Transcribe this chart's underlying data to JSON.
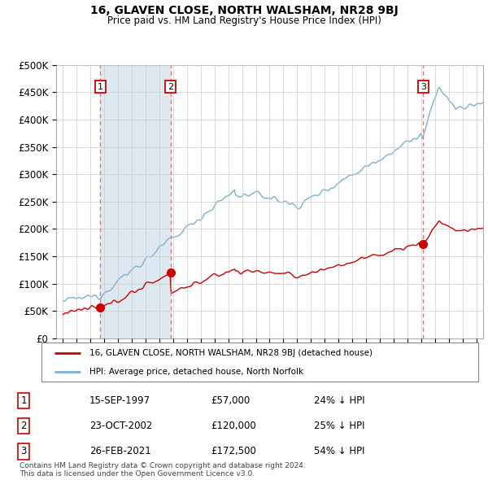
{
  "title": "16, GLAVEN CLOSE, NORTH WALSHAM, NR28 9BJ",
  "subtitle": "Price paid vs. HM Land Registry's House Price Index (HPI)",
  "ytick_values": [
    0,
    50000,
    100000,
    150000,
    200000,
    250000,
    300000,
    350000,
    400000,
    450000,
    500000
  ],
  "ylim": [
    0,
    500000
  ],
  "xlim_start": 1994.5,
  "xlim_end": 2025.5,
  "sale_dates": [
    1997.71,
    2002.81,
    2021.15
  ],
  "sale_prices": [
    57000,
    120000,
    172500
  ],
  "sale_labels": [
    "1",
    "2",
    "3"
  ],
  "sale_color": "#cc0000",
  "hpi_line_color": "#7ab0d4",
  "sale_line_color": "#cc0000",
  "shade_color": "#dde8f0",
  "grid_color": "#cccccc",
  "legend_entry1": "16, GLAVEN CLOSE, NORTH WALSHAM, NR28 9BJ (detached house)",
  "legend_entry2": "HPI: Average price, detached house, North Norfolk",
  "table_rows": [
    [
      "1",
      "15-SEP-1997",
      "£57,000",
      "24% ↓ HPI"
    ],
    [
      "2",
      "23-OCT-2002",
      "£120,000",
      "25% ↓ HPI"
    ],
    [
      "3",
      "26-FEB-2021",
      "£172,500",
      "54% ↓ HPI"
    ]
  ],
  "footer": "Contains HM Land Registry data © Crown copyright and database right 2024.\nThis data is licensed under the Open Government Licence v3.0.",
  "xtick_years": [
    1995,
    1996,
    1997,
    1998,
    1999,
    2000,
    2001,
    2002,
    2003,
    2004,
    2005,
    2006,
    2007,
    2008,
    2009,
    2010,
    2011,
    2012,
    2013,
    2014,
    2015,
    2016,
    2017,
    2018,
    2019,
    2020,
    2021,
    2022,
    2023,
    2024,
    2025
  ]
}
